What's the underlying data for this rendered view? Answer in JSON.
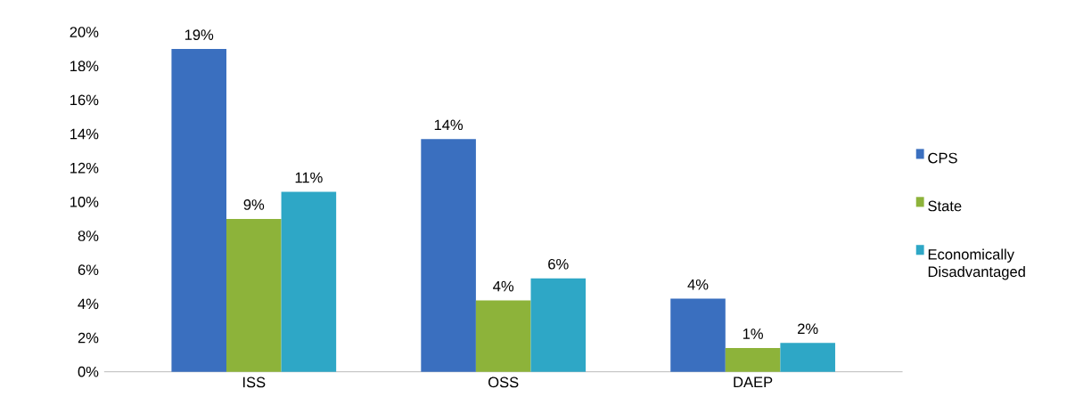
{
  "chart_data": {
    "type": "bar",
    "categories": [
      "ISS",
      "OSS",
      "DAEP"
    ],
    "series": [
      {
        "name": "CPS",
        "color": "#3a6fbf",
        "values": [
          19.0,
          13.7,
          4.3
        ],
        "value_labels": [
          "19%",
          "14%",
          "4%"
        ]
      },
      {
        "name": "State",
        "color": "#8db33a",
        "values": [
          9.0,
          4.2,
          1.4
        ],
        "value_labels": [
          "9%",
          "4%",
          "1%"
        ]
      },
      {
        "name": "Economically Disadvantaged",
        "color": "#2ea7c6",
        "values": [
          10.6,
          5.5,
          1.7
        ],
        "value_labels": [
          "11%",
          "6%",
          "2%"
        ]
      }
    ],
    "ylim": [
      0,
      20
    ],
    "yticks": [
      {
        "value": 0,
        "label": "0%"
      },
      {
        "value": 2,
        "label": "2%"
      },
      {
        "value": 4,
        "label": "4%"
      },
      {
        "value": 6,
        "label": "6%"
      },
      {
        "value": 8,
        "label": "8%"
      },
      {
        "value": 10,
        "label": "10%"
      },
      {
        "value": 12,
        "label": "12%"
      },
      {
        "value": 14,
        "label": "14%"
      },
      {
        "value": 16,
        "label": "16%"
      },
      {
        "value": 18,
        "label": "18%"
      },
      {
        "value": 20,
        "label": "20%"
      }
    ],
    "legend": "right"
  }
}
